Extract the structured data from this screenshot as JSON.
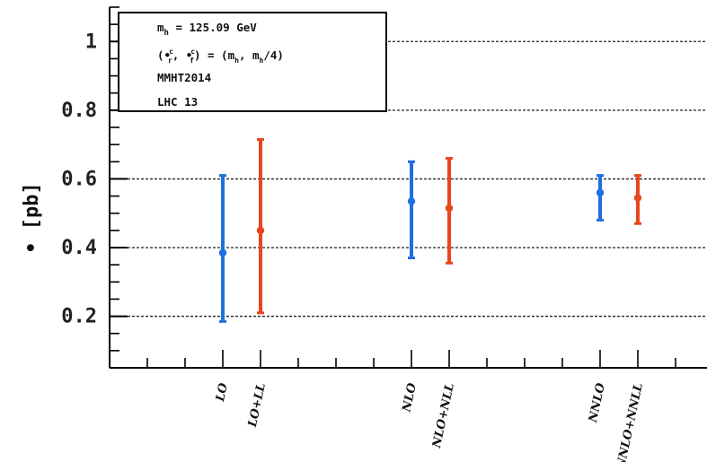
{
  "chart_data": {
    "type": "scatter",
    "ylabel": "• [pb]",
    "ylim": [
      0.05,
      1.1
    ],
    "yticks": [
      {
        "value": 0.2,
        "label": "0.2"
      },
      {
        "value": 0.4,
        "label": "0.4"
      },
      {
        "value": 0.6,
        "label": "0.6"
      },
      {
        "value": 0.8,
        "label": "0.8"
      },
      {
        "value": 1.0,
        "label": "1"
      }
    ],
    "grid": "dashed horizontal at major ticks",
    "categories": [
      "LO",
      "LO+LL",
      "NLO",
      "NLO+NLL",
      "NNLO",
      "NNLO+NNLL"
    ],
    "points": [
      {
        "label": "LO",
        "value": 0.385,
        "low": 0.185,
        "high": 0.61,
        "color": "#1f6fe0"
      },
      {
        "label": "LO+LL",
        "value": 0.45,
        "low": 0.21,
        "high": 0.715,
        "color": "#e8461e"
      },
      {
        "label": "NLO",
        "value": 0.535,
        "low": 0.37,
        "high": 0.65,
        "color": "#1f6fe0"
      },
      {
        "label": "NLO+NLL",
        "value": 0.515,
        "low": 0.355,
        "high": 0.66,
        "color": "#e8461e"
      },
      {
        "label": "NNLO",
        "value": 0.56,
        "low": 0.48,
        "high": 0.61,
        "color": "#1f6fe0"
      },
      {
        "label": "NNLO+NNLL",
        "value": 0.545,
        "low": 0.47,
        "high": 0.61,
        "color": "#e8461e"
      }
    ],
    "legend_box": {
      "placement": "top-left",
      "lines": [
        "m_h = 125.09 GeV",
        "(•_r^c, •_f^c) = (m_h, m_h/4)",
        "MMHT2014",
        "LHC 13"
      ]
    }
  }
}
